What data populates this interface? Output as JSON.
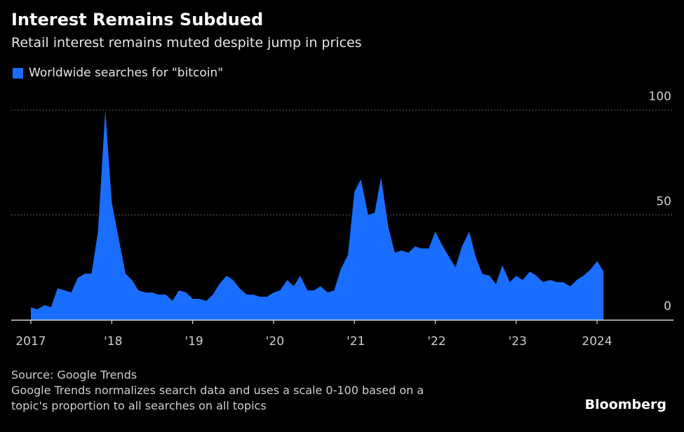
{
  "header": {
    "title": "Interest Remains Subdued",
    "subtitle": "Retail interest remains muted despite jump in prices"
  },
  "legend": {
    "label": "Worldwide searches for \"bitcoin\"",
    "color": "#1a6eff"
  },
  "footer": {
    "source": "Source: Google Trends",
    "note_line1": "Google Trends normalizes search data and uses a scale 0-100 based on a",
    "note_line2": "topic's proportion to all searches on all topics"
  },
  "brand": "Bloomberg",
  "chart_data": {
    "type": "area",
    "title": "Interest Remains Subdued",
    "subtitle": "Retail interest remains muted despite jump in prices",
    "ylim": [
      0,
      100
    ],
    "yticks": [
      0,
      50,
      100
    ],
    "xlim": [
      2017.0,
      2024.78
    ],
    "xticks": [
      {
        "value": 2017,
        "label": "2017"
      },
      {
        "value": 2018,
        "label": "'18"
      },
      {
        "value": 2019,
        "label": "'19"
      },
      {
        "value": 2020,
        "label": "'20"
      },
      {
        "value": 2021,
        "label": "'21"
      },
      {
        "value": 2022,
        "label": "'22"
      },
      {
        "value": 2023,
        "label": "'23"
      },
      {
        "value": 2024,
        "label": "2024"
      }
    ],
    "grid": true,
    "series": [
      {
        "name": "Worldwide searches for \"bitcoin\"",
        "color": "#1a6eff",
        "x": [
          2017.0,
          2017.08,
          2017.17,
          2017.25,
          2017.33,
          2017.42,
          2017.5,
          2017.58,
          2017.67,
          2017.75,
          2017.83,
          2017.92,
          2018.0,
          2018.08,
          2018.17,
          2018.25,
          2018.33,
          2018.42,
          2018.5,
          2018.58,
          2018.67,
          2018.75,
          2018.83,
          2018.92,
          2019.0,
          2019.08,
          2019.17,
          2019.25,
          2019.33,
          2019.42,
          2019.5,
          2019.58,
          2019.67,
          2019.75,
          2019.83,
          2019.92,
          2020.0,
          2020.08,
          2020.17,
          2020.25,
          2020.33,
          2020.42,
          2020.5,
          2020.58,
          2020.67,
          2020.75,
          2020.83,
          2020.92,
          2021.0,
          2021.08,
          2021.17,
          2021.25,
          2021.33,
          2021.42,
          2021.5,
          2021.58,
          2021.67,
          2021.75,
          2021.83,
          2021.92,
          2022.0,
          2022.08,
          2022.17,
          2022.25,
          2022.33,
          2022.42,
          2022.5,
          2022.58,
          2022.67,
          2022.75,
          2022.83,
          2022.92,
          2023.0,
          2023.08,
          2023.17,
          2023.25,
          2023.33,
          2023.42,
          2023.5,
          2023.58,
          2023.67,
          2023.75,
          2023.83,
          2023.92,
          2024.0,
          2024.08
        ],
        "values": [
          6,
          5,
          7,
          6,
          15,
          14,
          13,
          20,
          22,
          22,
          42,
          100,
          56,
          40,
          22,
          19,
          14,
          13,
          13,
          12,
          12,
          9,
          14,
          13,
          10,
          10,
          9,
          12,
          17,
          21,
          19,
          15,
          12,
          12,
          11,
          11,
          13,
          14,
          19,
          16,
          21,
          14,
          14,
          16,
          13,
          14,
          24,
          31,
          61,
          67,
          50,
          51,
          68,
          44,
          32,
          33,
          32,
          35,
          34,
          34,
          42,
          36,
          30,
          25,
          35,
          42,
          30,
          22,
          21,
          17,
          26,
          18,
          21,
          19,
          23,
          21,
          18,
          19,
          18,
          18,
          16,
          19,
          21,
          24,
          28,
          23
        ]
      }
    ]
  }
}
